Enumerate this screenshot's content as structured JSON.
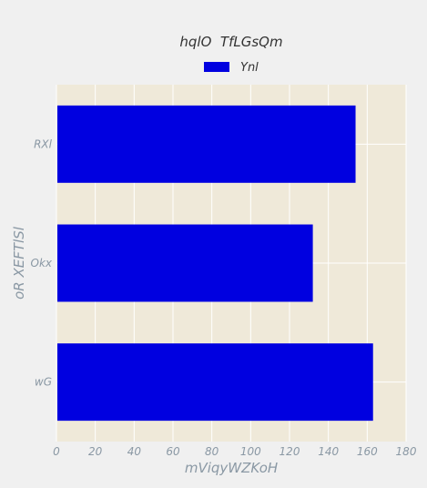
{
  "chart_data": {
    "type": "bar",
    "orientation": "horizontal",
    "title": "hqlO  TfLGsQm",
    "xlabel": "mViqyWZKoH",
    "ylabel": "oR XEFTlSl",
    "categories": [
      "wG",
      "Okx",
      "RXl"
    ],
    "series": [
      {
        "name": "Ynl",
        "values": [
          163,
          132,
          154
        ],
        "color": "#0000e0"
      }
    ],
    "xlim": [
      0,
      180
    ],
    "xticks": [
      0,
      20,
      40,
      60,
      80,
      100,
      120,
      140,
      160,
      180
    ],
    "grid": true,
    "legend_position": "top-center",
    "plot_background": "#efe9d9",
    "grid_color": "#ffffff",
    "text_color": "#8a98a4"
  }
}
